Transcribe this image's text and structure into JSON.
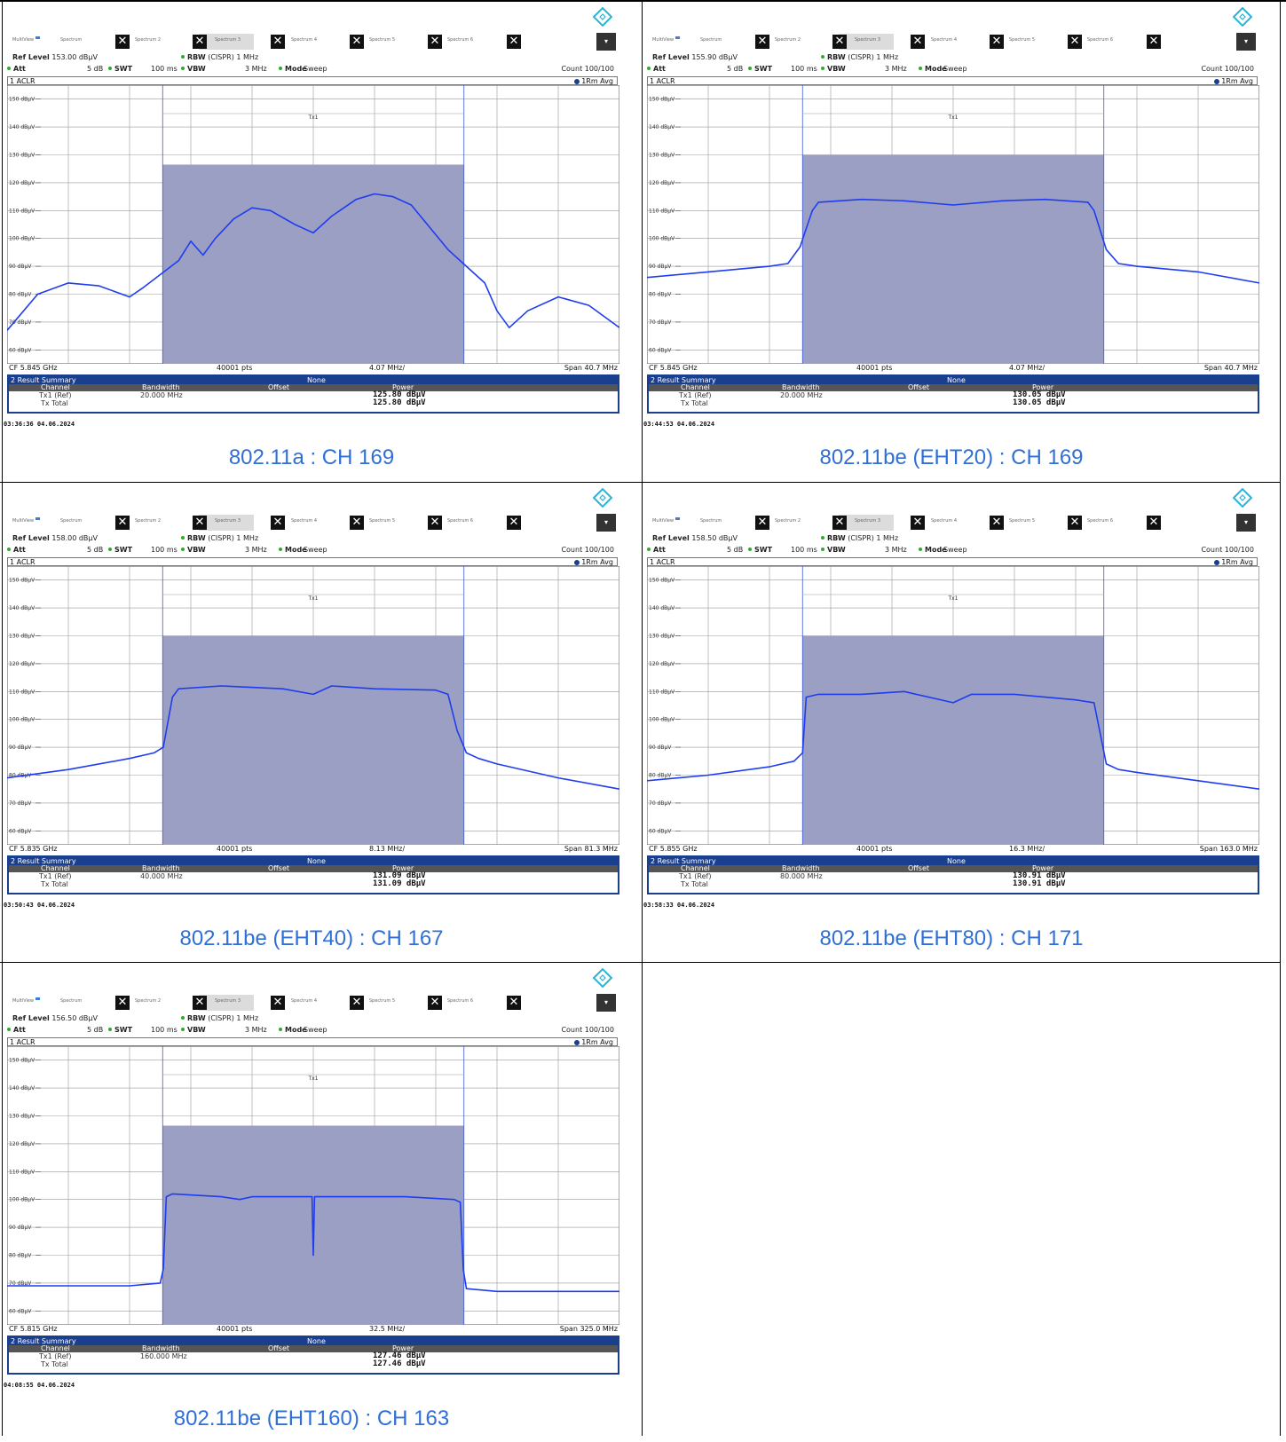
{
  "ui": {
    "tabs": [
      "MultiView",
      "Spectrum",
      "Spectrum 2",
      "Spectrum 3",
      "Spectrum 4",
      "Spectrum 5",
      "Spectrum 6"
    ],
    "close_glyph": "✕",
    "dropdown_glyph": "▾",
    "labels": {
      "ref_level": "Ref Level",
      "att": "Att",
      "att_value": "5 dB",
      "swt": "SWT",
      "swt_value": "100 ms",
      "rbw": "RBW",
      "rbw_value": "(CISPR) 1 MHz",
      "vbw": "VBW",
      "vbw_value": "3 MHz",
      "mode": "Mode",
      "mode_value": "Sweep",
      "count": "Count 100/100",
      "aclr": "1 ACLR",
      "trace": "1Rm Avg",
      "tx_marker": "Tx1",
      "points": "40001 pts",
      "result_summary": "2 Result Summary",
      "result_none": "None",
      "col_channel": "Channel",
      "col_bandwidth": "Bandwidth",
      "col_offset": "Offset",
      "col_power": "Power",
      "row_tx1": "Tx1 (Ref)",
      "row_total": "Tx Total"
    },
    "y_tick_labels": [
      "150 dBµV",
      "140 dBµV",
      "130 dBµV",
      "120 dBµV",
      "110 dBµV",
      "100 dBµV",
      "90 dBµV",
      "80 dBµV",
      "70 dBµV",
      "60 dBµV"
    ],
    "colors": {
      "trace": "#1f3df0",
      "channel_fill": "#9c9fc4",
      "caption": "#2f6fd6",
      "summary_header": "#1a3f8f"
    }
  },
  "panels": [
    {
      "caption": "802.11a : CH 169",
      "ref_level": "153.00 dBµV",
      "cf": "CF 5.845 GHz",
      "div": "4.07 MHz/",
      "span": "Span 40.7 MHz",
      "bandwidth": "20.000 MHz",
      "tx1_power": "125.80 dBµV",
      "total_power": "125.80 dBµV",
      "timestamp": "03:36:36   04.06.2024"
    },
    {
      "caption": "802.11be (EHT20) : CH 169",
      "ref_level": "155.90 dBµV",
      "cf": "CF 5.845 GHz",
      "div": "4.07 MHz/",
      "span": "Span 40.7 MHz",
      "bandwidth": "20.000 MHz",
      "tx1_power": "130.05 dBµV",
      "total_power": "130.05 dBµV",
      "timestamp": "03:44:53   04.06.2024"
    },
    {
      "caption": "802.11be (EHT40) : CH 167",
      "ref_level": "158.00 dBµV",
      "cf": "CF 5.835 GHz",
      "div": "8.13 MHz/",
      "span": "Span 81.3 MHz",
      "bandwidth": "40.000 MHz",
      "tx1_power": "131.09 dBµV",
      "total_power": "131.09 dBµV",
      "timestamp": "03:50:43   04.06.2024"
    },
    {
      "caption": "802.11be (EHT80) : CH 171",
      "ref_level": "158.50 dBµV",
      "cf": "CF 5.855 GHz",
      "div": "16.3 MHz/",
      "span": "Span 163.0 MHz",
      "bandwidth": "80.000 MHz",
      "tx1_power": "130.91 dBµV",
      "total_power": "130.91 dBµV",
      "timestamp": "03:58:33   04.06.2024"
    },
    {
      "caption": "802.11be (EHT160) : CH 163",
      "ref_level": "156.50 dBµV",
      "cf": "CF 5.815 GHz",
      "div": "32.5 MHz/",
      "span": "Span 325.0 MHz",
      "bandwidth": "160.000 MHz",
      "tx1_power": "127.46 dBµV",
      "total_power": "127.46 dBµV",
      "timestamp": "04:08:55   04.06.2024"
    }
  ],
  "chart_data": [
    {
      "type": "line",
      "x_unit": "offset from CF (divisions, 10 div = span)",
      "y_unit": "dBµV",
      "ylim": [
        55,
        155
      ],
      "channel_limit_db": 126.5,
      "channel_x": [
        -2.46,
        2.46
      ],
      "x": [
        -5,
        -4.5,
        -4,
        -3.5,
        -3,
        -2.8,
        -2.5,
        -2.2,
        -2,
        -1.8,
        -1.6,
        -1.3,
        -1,
        -0.7,
        -0.3,
        0,
        0.3,
        0.7,
        1,
        1.3,
        1.6,
        1.9,
        2.2,
        2.5,
        2.8,
        3,
        3.2,
        3.5,
        4,
        4.5,
        5
      ],
      "y": [
        67,
        80,
        84,
        83,
        79,
        82,
        87,
        92,
        99,
        94,
        100,
        107,
        111,
        110,
        105,
        102,
        108,
        114,
        116,
        115,
        112,
        104,
        96,
        90,
        84,
        74,
        68,
        74,
        79,
        76,
        68
      ]
    },
    {
      "type": "line",
      "x_unit": "offset from CF (divisions)",
      "y_unit": "dBµV",
      "ylim": [
        55,
        155
      ],
      "channel_limit_db": 130,
      "channel_x": [
        -2.46,
        2.46
      ],
      "x": [
        -5,
        -4,
        -3,
        -2.7,
        -2.5,
        -2.3,
        -2.2,
        -1.5,
        -0.8,
        0,
        0.8,
        1.5,
        2.2,
        2.3,
        2.5,
        2.7,
        3,
        4,
        5
      ],
      "y": [
        86,
        88,
        90,
        91,
        97,
        110,
        113,
        114,
        113.5,
        112,
        113.5,
        114,
        113,
        110,
        96,
        91,
        90,
        88,
        84
      ]
    },
    {
      "type": "line",
      "x_unit": "offset from CF (divisions)",
      "y_unit": "dBµV",
      "ylim": [
        55,
        155
      ],
      "channel_limit_db": 130,
      "channel_x": [
        -2.46,
        2.46
      ],
      "x": [
        -5,
        -4,
        -3,
        -2.6,
        -2.45,
        -2.3,
        -2.2,
        -1.5,
        -0.5,
        0,
        0.3,
        1,
        2,
        2.2,
        2.35,
        2.5,
        2.7,
        3,
        4,
        5
      ],
      "y": [
        79,
        82,
        86,
        88,
        90,
        108,
        111,
        112,
        111,
        109,
        112,
        111,
        110.5,
        109,
        96,
        88,
        86,
        84,
        79,
        75
      ]
    },
    {
      "type": "line",
      "x_unit": "offset from CF (divisions)",
      "y_unit": "dBµV",
      "ylim": [
        55,
        155
      ],
      "channel_limit_db": 130,
      "channel_x": [
        -2.46,
        2.46
      ],
      "x": [
        -5,
        -4,
        -3,
        -2.6,
        -2.46,
        -2.4,
        -2.2,
        -1.5,
        -0.8,
        0,
        0.3,
        1,
        2,
        2.3,
        2.4,
        2.5,
        2.7,
        3,
        4,
        5
      ],
      "y": [
        78,
        80,
        83,
        85,
        88,
        108,
        109,
        109,
        110,
        106,
        109,
        109,
        107,
        106,
        95,
        84,
        82,
        81,
        78,
        75
      ]
    },
    {
      "type": "line",
      "x_unit": "offset from CF (divisions)",
      "y_unit": "dBµV",
      "ylim": [
        55,
        155
      ],
      "channel_limit_db": 126.5,
      "channel_x": [
        -2.46,
        2.46
      ],
      "x": [
        -5,
        -3,
        -2.5,
        -2.45,
        -2.4,
        -2.3,
        -1.5,
        -1.2,
        -1,
        -0.5,
        -0.02,
        0,
        0.02,
        0.5,
        1.2,
        1.5,
        2.3,
        2.4,
        2.45,
        2.5,
        3,
        5
      ],
      "y": [
        69,
        69,
        70,
        75,
        101,
        102,
        101,
        100,
        101,
        101,
        101,
        80,
        101,
        101,
        101,
        101,
        100,
        99,
        75,
        68,
        67,
        67
      ]
    }
  ]
}
